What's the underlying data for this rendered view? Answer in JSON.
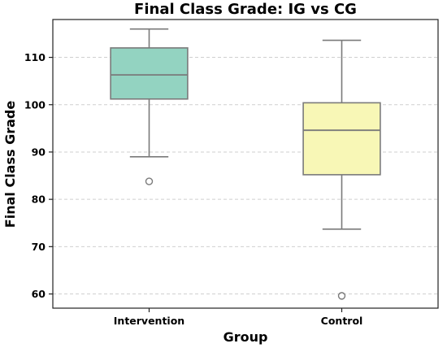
{
  "chart_data": {
    "type": "box",
    "title": "Final Class Grade: IG vs CG",
    "xlabel": "Group",
    "ylabel": "Final Class Grade",
    "ylim": [
      57,
      118
    ],
    "yticks": [
      60,
      70,
      80,
      90,
      100,
      110
    ],
    "grid": "y-dashed",
    "categories": [
      "Intervention",
      "Control"
    ],
    "series": [
      {
        "category": "Intervention",
        "color": "#93d3c1",
        "whisker_low": 89.0,
        "q1": 101.2,
        "median": 106.3,
        "q3": 112.0,
        "whisker_high": 116.0,
        "outliers": [
          83.8
        ]
      },
      {
        "category": "Control",
        "color": "#f8f7b6",
        "whisker_low": 73.7,
        "q1": 85.2,
        "median": 94.6,
        "q3": 100.4,
        "whisker_high": 113.6,
        "outliers": [
          59.6
        ]
      }
    ]
  }
}
